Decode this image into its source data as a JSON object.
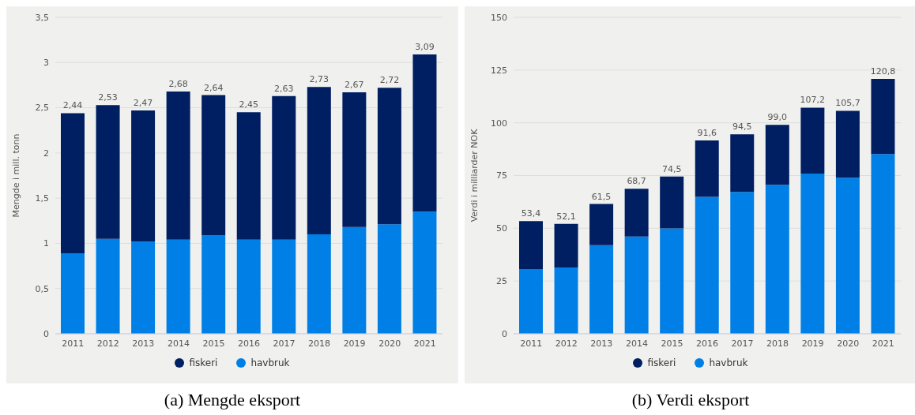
{
  "chart_data": [
    {
      "type": "bar",
      "title": "(a) Mengde eksport",
      "ylabel": "Mengde i mill. tonn",
      "categories": [
        "2011",
        "2012",
        "2013",
        "2014",
        "2015",
        "2016",
        "2017",
        "2018",
        "2019",
        "2020",
        "2021"
      ],
      "stacked": true,
      "series": [
        {
          "name": "havbruk",
          "color": "#0080e6",
          "values": [
            0.89,
            1.05,
            1.02,
            1.04,
            1.09,
            1.04,
            1.04,
            1.1,
            1.18,
            1.21,
            1.35
          ]
        },
        {
          "name": "fiskeri",
          "color": "#001e62",
          "values": [
            1.55,
            1.48,
            1.45,
            1.64,
            1.55,
            1.41,
            1.59,
            1.63,
            1.49,
            1.51,
            1.74
          ]
        }
      ],
      "totals": [
        "2,44",
        "2,53",
        "2,47",
        "2,68",
        "2,64",
        "2,45",
        "2,63",
        "2,73",
        "2,67",
        "2,72",
        "3,09"
      ],
      "ylim": [
        0,
        3.5
      ],
      "yticks": [
        0,
        {
          "value": 0.5,
          "label": "0,5"
        },
        1,
        {
          "value": 1.5,
          "label": "1,5"
        },
        2,
        {
          "value": 2.5,
          "label": "2,5"
        },
        3,
        {
          "value": 3.5,
          "label": "3,5"
        }
      ],
      "grid": "y",
      "legend": "bottom"
    },
    {
      "type": "bar",
      "title": "(b) Verdi eksport",
      "ylabel": "Verdi i milliarder NOK",
      "categories": [
        "2011",
        "2012",
        "2013",
        "2014",
        "2015",
        "2016",
        "2017",
        "2018",
        "2019",
        "2020",
        "2021"
      ],
      "stacked": true,
      "series": [
        {
          "name": "havbruk",
          "color": "#0080e6",
          "values": [
            30.5,
            31.4,
            42.0,
            46.1,
            49.9,
            64.9,
            67.2,
            70.6,
            75.9,
            74.0,
            85.2
          ]
        },
        {
          "name": "fiskeri",
          "color": "#001e62",
          "values": [
            22.9,
            20.7,
            19.5,
            22.6,
            24.6,
            26.7,
            27.3,
            28.4,
            31.3,
            31.7,
            35.6
          ]
        }
      ],
      "totals": [
        "53,4",
        "52,1",
        "61,5",
        "68,7",
        "74,5",
        "91,6",
        "94,5",
        "99,0",
        "107,2",
        "105,7",
        "120,8"
      ],
      "ylim": [
        0,
        150
      ],
      "yticks": [
        0,
        25,
        50,
        75,
        100,
        125,
        150
      ],
      "grid": "y",
      "legend": "bottom"
    }
  ]
}
